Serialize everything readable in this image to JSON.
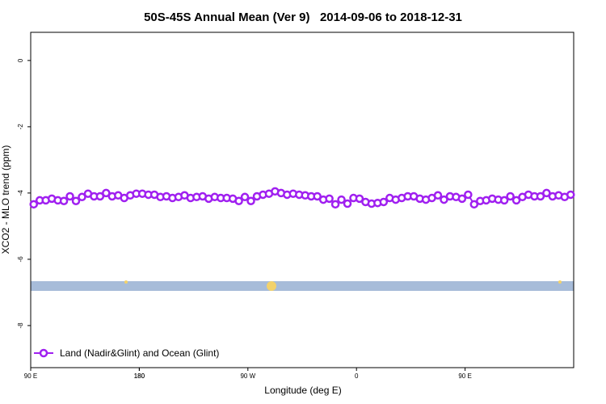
{
  "chart_data": {
    "type": "line",
    "title": "50S-45S Annual Mean (Ver 9)   2014-09-06 to 2018-12-31",
    "x_label": "Longitude (deg E)",
    "y_label": "XCO2 - MLO trend (ppm)",
    "x": [
      92.5,
      97.5,
      102.5,
      107.5,
      112.5,
      117.5,
      122.5,
      127.5,
      132.5,
      137.5,
      142.5,
      147.5,
      152.5,
      157.5,
      162.5,
      167.5,
      172.5,
      177.5,
      182.5,
      187.5,
      192.5,
      197.5,
      202.5,
      207.5,
      212.5,
      217.5,
      222.5,
      227.5,
      232.5,
      237.5,
      242.5,
      247.5,
      252.5,
      257.5,
      262.5,
      267.5,
      272.5,
      277.5,
      282.5,
      287.5,
      292.5,
      297.5,
      302.5,
      307.5,
      312.5,
      317.5,
      322.5,
      327.5,
      332.5,
      337.5,
      342.5,
      347.5,
      352.5,
      357.5,
      362.5,
      367.5,
      372.5,
      377.5,
      382.5,
      387.5,
      392.5,
      397.5,
      402.5,
      407.5,
      412.5,
      417.5,
      422.5,
      427.5,
      432.5,
      437.5,
      442.5,
      447.5,
      452.5,
      457.5,
      462.5,
      467.5,
      472.5,
      477.5,
      482.5,
      487.5,
      492.5,
      497.5,
      502.5,
      507.5,
      512.5,
      517.5,
      522.5,
      527.5,
      532.5,
      537.5
    ],
    "series": [
      {
        "name": "Land (Nadir&Glint) and Ocean (Glint)",
        "color": "#a020f0",
        "values": [
          -4.34,
          -4.22,
          -4.22,
          -4.17,
          -4.22,
          -4.24,
          -4.1,
          -4.24,
          -4.12,
          -4.02,
          -4.1,
          -4.1,
          -4.0,
          -4.1,
          -4.07,
          -4.15,
          -4.07,
          -4.02,
          -4.02,
          -4.05,
          -4.05,
          -4.12,
          -4.1,
          -4.15,
          -4.12,
          -4.07,
          -4.15,
          -4.12,
          -4.1,
          -4.17,
          -4.12,
          -4.15,
          -4.15,
          -4.17,
          -4.24,
          -4.12,
          -4.24,
          -4.1,
          -4.05,
          -4.02,
          -3.95,
          -4.0,
          -4.05,
          -4.02,
          -4.05,
          -4.07,
          -4.1,
          -4.1,
          -4.2,
          -4.17,
          -4.34,
          -4.2,
          -4.32,
          -4.15,
          -4.17,
          -4.27,
          -4.32,
          -4.3,
          -4.27,
          -4.15,
          -4.2,
          -4.15,
          -4.1,
          -4.1,
          -4.17,
          -4.2,
          -4.15,
          -4.07,
          -4.2,
          -4.1,
          -4.12,
          -4.17,
          -4.05,
          -4.34,
          -4.24,
          -4.22,
          -4.17,
          -4.2,
          -4.22,
          -4.1,
          -4.22,
          -4.12,
          -4.05,
          -4.1,
          -4.1,
          -4.0,
          -4.1,
          -4.07,
          -4.12,
          -4.05
        ]
      }
    ],
    "xlim": [
      90,
      540
    ],
    "xticks": [
      {
        "value": 90,
        "label": "90 E"
      },
      180,
      {
        "value": 270,
        "label": "90 W"
      },
      {
        "value": 360,
        "label": "0"
      },
      {
        "value": 450,
        "label": "90 E"
      },
      180.0001
    ],
    "ylim": [
      -9.27,
      0.85
    ],
    "yticks": [
      0,
      -2,
      -4,
      -6,
      -8
    ],
    "legend": "bottom-left",
    "grid": false
  }
}
